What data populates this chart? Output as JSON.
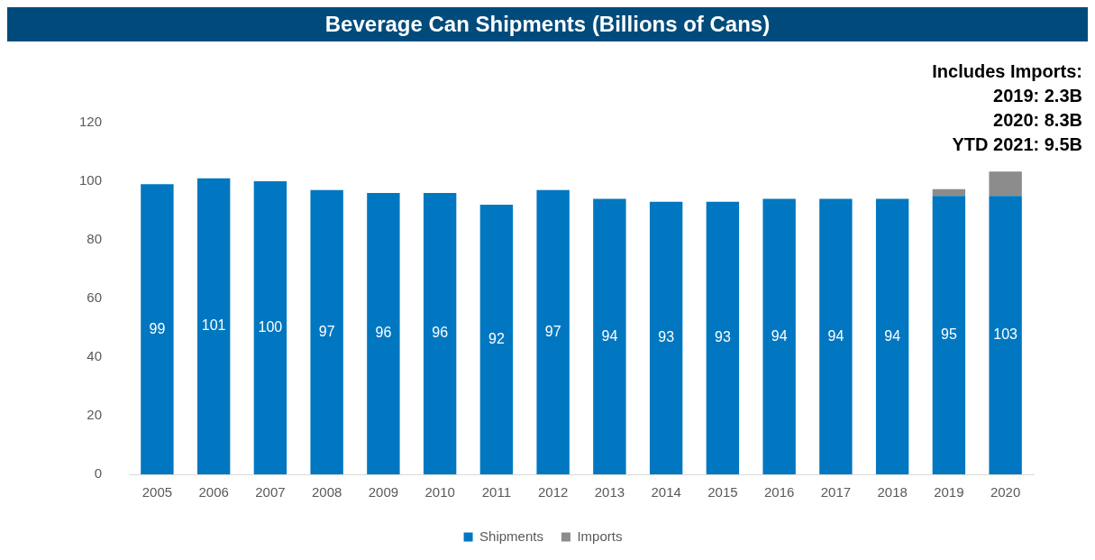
{
  "chart_data": {
    "type": "bar",
    "title": "Beverage Can Shipments (Billions of Cans)",
    "categories": [
      "2005",
      "2006",
      "2007",
      "2008",
      "2009",
      "2010",
      "2011",
      "2012",
      "2013",
      "2014",
      "2015",
      "2016",
      "2017",
      "2018",
      "2019",
      "2020"
    ],
    "series": [
      {
        "name": "Shipments",
        "color": "#0077c0",
        "values": [
          99,
          101,
          100,
          97,
          96,
          96,
          92,
          97,
          94,
          93,
          93,
          94,
          94,
          94,
          95,
          95
        ],
        "value_labels": [
          "99",
          "101",
          "100",
          "97",
          "96",
          "96",
          "92",
          "97",
          "94",
          "93",
          "93",
          "94",
          "94",
          "94",
          "95",
          null
        ]
      },
      {
        "name": "Imports",
        "color": "#8c8c8c",
        "values": [
          null,
          null,
          null,
          null,
          null,
          null,
          null,
          null,
          null,
          null,
          null,
          null,
          null,
          null,
          2.3,
          8.3
        ]
      }
    ],
    "totals": [
      null,
      null,
      null,
      null,
      null,
      null,
      null,
      null,
      null,
      null,
      null,
      null,
      null,
      null,
      null,
      "103"
    ],
    "stacked": true,
    "ylim": [
      0,
      120
    ],
    "yticks": [
      0,
      20,
      40,
      60,
      80,
      100,
      120
    ],
    "grid": false,
    "legend": "bottom",
    "annotations": [
      "Includes Imports:",
      "2019: 2.3B",
      "2020: 8.3B",
      "YTD 2021: 9.5B"
    ]
  }
}
